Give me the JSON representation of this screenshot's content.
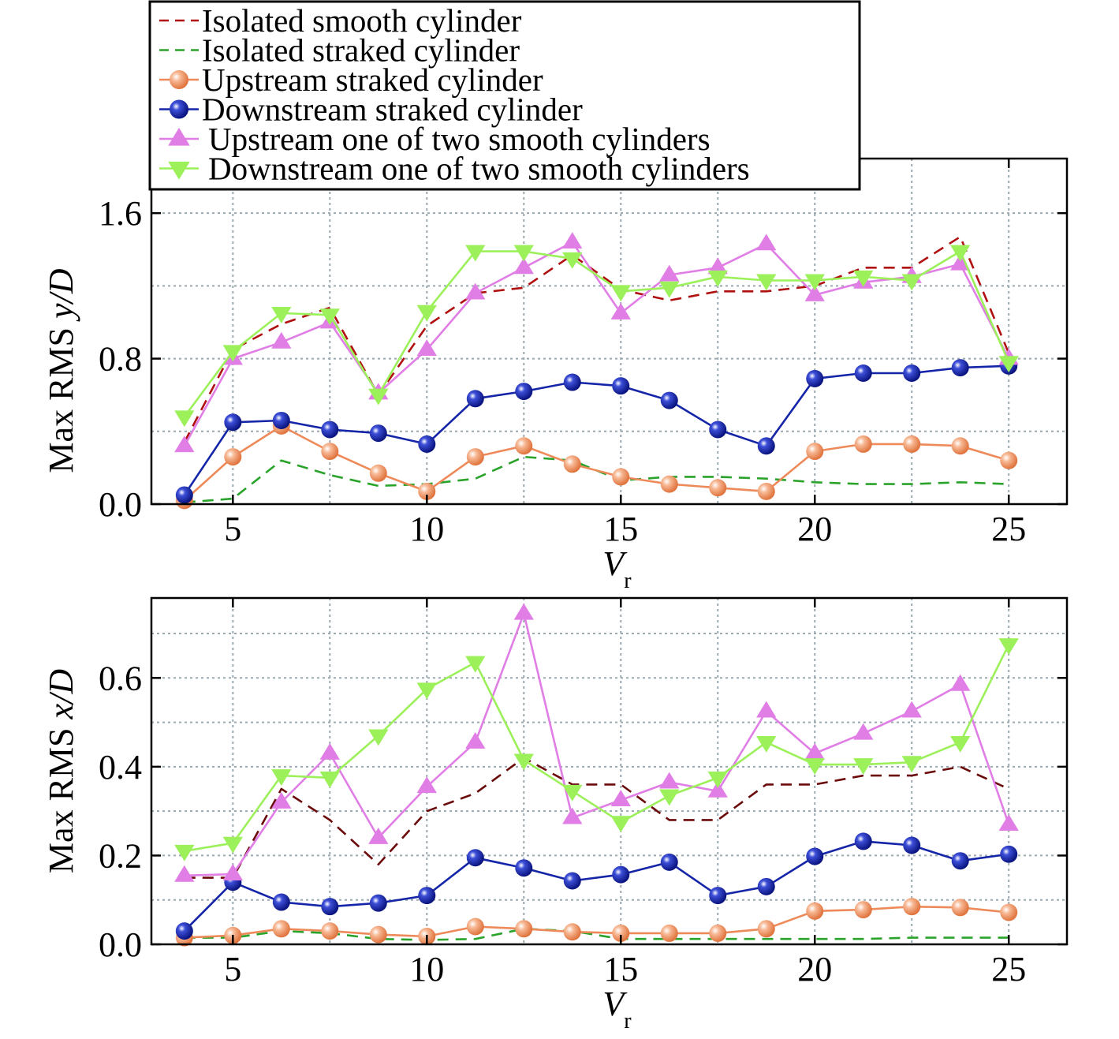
{
  "chart_data": [
    {
      "type": "line",
      "xlabel": "Vr",
      "xlabel_main": "V",
      "xlabel_sub": "r",
      "ylabel": "Max RMS y/D",
      "ylabel_prefix": "Max RMS ",
      "ylabel_var": "y/D",
      "xlim": [
        2.9,
        26.5
      ],
      "ylim": [
        0,
        1.9
      ],
      "xticks": [
        5,
        10,
        15,
        20,
        25
      ],
      "yticks": [
        0.0,
        0.8,
        1.6
      ],
      "ytick_labels": [
        "0.0",
        "0.8",
        "1.6"
      ],
      "xtick_labels": [
        "5",
        "10",
        "15",
        "20",
        "25"
      ],
      "grid": true,
      "x": [
        3.75,
        5,
        6.25,
        7.5,
        8.75,
        10,
        11.25,
        12.5,
        13.75,
        15,
        16.25,
        17.5,
        18.75,
        20,
        21.25,
        22.5,
        23.75,
        25
      ],
      "series": [
        {
          "name": "Isolated smooth cylinder",
          "style": "dash",
          "color": "#b01010",
          "values": [
            0.34,
            0.85,
            0.99,
            1.08,
            0.6,
            0.98,
            1.16,
            1.19,
            1.37,
            1.18,
            1.12,
            1.17,
            1.17,
            1.2,
            1.3,
            1.3,
            1.47,
            0.83
          ]
        },
        {
          "name": "Isolated straked cylinder",
          "style": "dash",
          "color": "#2aa32a",
          "values": [
            0.01,
            0.03,
            0.24,
            0.16,
            0.1,
            0.11,
            0.14,
            0.26,
            0.24,
            0.13,
            0.15,
            0.15,
            0.14,
            0.12,
            0.11,
            0.11,
            0.12,
            0.11
          ]
        },
        {
          "name": "Upstream straked cylinder",
          "style": "circle",
          "color": "#ee8a5a",
          "values": [
            0.02,
            0.26,
            0.43,
            0.29,
            0.17,
            0.07,
            0.26,
            0.32,
            0.22,
            0.15,
            0.11,
            0.09,
            0.07,
            0.29,
            0.33,
            0.33,
            0.32,
            0.24
          ]
        },
        {
          "name": "Downstream straked cylinder",
          "style": "circle",
          "color": "#1525a8",
          "values": [
            0.05,
            0.45,
            0.46,
            0.41,
            0.39,
            0.33,
            0.58,
            0.62,
            0.67,
            0.65,
            0.57,
            0.41,
            0.32,
            0.69,
            0.72,
            0.72,
            0.75,
            0.76
          ]
        },
        {
          "name": "Upstream one of two smooth cylinders",
          "style": "tri-up",
          "color": "#e07ee6",
          "values": [
            0.32,
            0.8,
            0.89,
            1.0,
            0.61,
            0.85,
            1.16,
            1.3,
            1.44,
            1.05,
            1.26,
            1.3,
            1.43,
            1.15,
            1.22,
            1.25,
            1.32,
            0.8
          ]
        },
        {
          "name": "Downstream one of two smooth cylinders",
          "style": "tri-down",
          "color": "#9cf05a",
          "values": [
            0.48,
            0.84,
            1.05,
            1.04,
            0.6,
            1.06,
            1.39,
            1.39,
            1.35,
            1.17,
            1.19,
            1.25,
            1.23,
            1.23,
            1.25,
            1.23,
            1.39,
            0.78
          ]
        }
      ]
    },
    {
      "type": "line",
      "xlabel": "Vr",
      "xlabel_main": "V",
      "xlabel_sub": "r",
      "ylabel": "Max RMS x/D",
      "ylabel_prefix": "Max RMS ",
      "ylabel_var": "x/D",
      "xlim": [
        2.9,
        26.5
      ],
      "ylim": [
        0,
        0.78
      ],
      "xticks": [
        5,
        10,
        15,
        20,
        25
      ],
      "yticks": [
        0.0,
        0.2,
        0.4,
        0.6
      ],
      "ytick_labels": [
        "0.0",
        "0.2",
        "0.4",
        "0.6"
      ],
      "xtick_labels": [
        "5",
        "10",
        "15",
        "20",
        "25"
      ],
      "grid": true,
      "x": [
        3.75,
        5,
        6.25,
        7.5,
        8.75,
        10,
        11.25,
        12.5,
        13.75,
        15,
        16.25,
        17.5,
        18.75,
        20,
        21.25,
        22.5,
        23.75,
        25
      ],
      "series": [
        {
          "name": "Isolated smooth cylinder",
          "style": "dash",
          "color": "#6a0a0a",
          "values": [
            0.15,
            0.15,
            0.35,
            0.28,
            0.18,
            0.3,
            0.34,
            0.42,
            0.36,
            0.36,
            0.28,
            0.28,
            0.36,
            0.36,
            0.38,
            0.38,
            0.4,
            0.35
          ]
        },
        {
          "name": "Isolated straked cylinder",
          "style": "dash",
          "color": "#2aa32a",
          "values": [
            0.015,
            0.015,
            0.03,
            0.025,
            0.012,
            0.01,
            0.012,
            0.035,
            0.03,
            0.012,
            0.012,
            0.012,
            0.012,
            0.012,
            0.012,
            0.015,
            0.015,
            0.015
          ]
        },
        {
          "name": "Upstream straked cylinder",
          "style": "circle",
          "color": "#ee8a5a",
          "values": [
            0.015,
            0.02,
            0.035,
            0.03,
            0.022,
            0.018,
            0.04,
            0.035,
            0.028,
            0.025,
            0.025,
            0.025,
            0.035,
            0.075,
            0.078,
            0.085,
            0.083,
            0.072
          ]
        },
        {
          "name": "Downstream straked cylinder",
          "style": "circle",
          "color": "#1525a8",
          "values": [
            0.03,
            0.14,
            0.095,
            0.085,
            0.093,
            0.11,
            0.195,
            0.172,
            0.143,
            0.157,
            0.185,
            0.11,
            0.13,
            0.198,
            0.232,
            0.223,
            0.188,
            0.203
          ]
        },
        {
          "name": "Upstream one of two smooth cylinders",
          "style": "tri-up",
          "color": "#e07ee6",
          "values": [
            0.155,
            0.158,
            0.32,
            0.43,
            0.24,
            0.355,
            0.455,
            0.745,
            0.285,
            0.325,
            0.365,
            0.345,
            0.525,
            0.43,
            0.475,
            0.525,
            0.585,
            0.27
          ]
        },
        {
          "name": "Downstream one of two smooth cylinders",
          "style": "tri-down",
          "color": "#9cf05a",
          "values": [
            0.21,
            0.228,
            0.38,
            0.375,
            0.47,
            0.575,
            0.635,
            0.415,
            0.345,
            0.275,
            0.335,
            0.375,
            0.455,
            0.405,
            0.405,
            0.41,
            0.455,
            0.675
          ]
        }
      ]
    }
  ]
}
